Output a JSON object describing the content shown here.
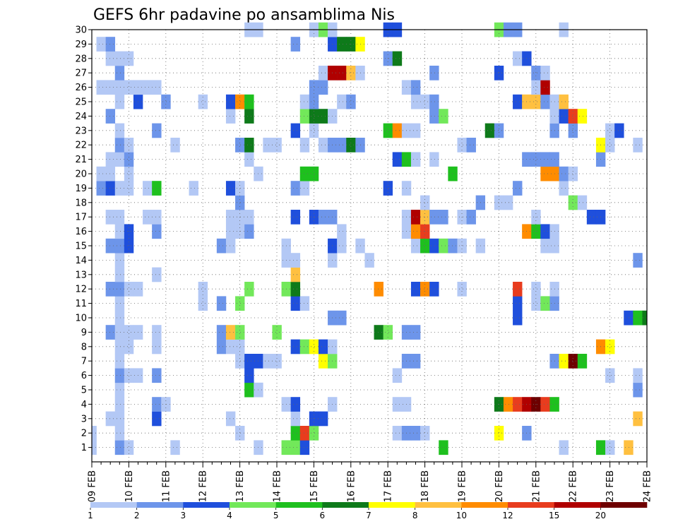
{
  "chart_data": {
    "type": "heatmap",
    "title": "GEFS 6hr padavine po ansamblima Nis",
    "xlabel": "",
    "ylabel": "",
    "x_range_steps": [
      0,
      60
    ],
    "steps_per_day": 4,
    "x_ticks": [
      "09 FEB",
      "10 FEB",
      "11 FEB",
      "12 FEB",
      "13 FEB",
      "14 FEB",
      "15 FEB",
      "16 FEB",
      "17 FEB",
      "18 FEB",
      "19 FEB",
      "20 FEB",
      "21 FEB",
      "22 FEB",
      "23 FEB",
      "24 FEB"
    ],
    "y_ticks": [
      1,
      2,
      3,
      4,
      5,
      6,
      7,
      8,
      9,
      10,
      11,
      12,
      13,
      14,
      15,
      16,
      17,
      18,
      19,
      20,
      21,
      22,
      23,
      24,
      25,
      26,
      27,
      28,
      29,
      30
    ],
    "ylim": [
      0,
      30
    ],
    "grid": true,
    "colorbar": {
      "labels": [
        "1",
        "2",
        "3",
        "4",
        "5",
        "6",
        "7",
        "8",
        "10",
        "12",
        "15",
        "20"
      ],
      "colors": [
        "#b3c8f5",
        "#6d95ea",
        "#1f4fdc",
        "#72e85a",
        "#1ec01e",
        "#0e7a1a",
        "#ffff00",
        "#ffc040",
        "#ff8c00",
        "#e83c1e",
        "#b00000",
        "#6e0000"
      ]
    },
    "levels_note": "each cell value = color bin index (1 = 1-2 mm ... 12 = >20 mm); x = 6-hour step from 09 FEB 00z, y = ensemble member",
    "cells": [
      [
        1,
        0,
        1
      ],
      [
        1,
        3,
        2
      ],
      [
        1,
        4,
        1
      ],
      [
        1,
        9,
        1
      ],
      [
        1,
        18,
        1
      ],
      [
        1,
        21,
        4
      ],
      [
        1,
        22,
        4
      ],
      [
        1,
        23,
        3
      ],
      [
        1,
        38,
        5
      ],
      [
        1,
        51,
        1
      ],
      [
        1,
        55,
        5
      ],
      [
        1,
        56,
        1
      ],
      [
        1,
        58,
        8
      ],
      [
        2,
        0,
        1
      ],
      [
        2,
        3,
        1
      ],
      [
        2,
        16,
        1
      ],
      [
        2,
        22,
        5
      ],
      [
        2,
        23,
        10
      ],
      [
        2,
        24,
        4
      ],
      [
        2,
        33,
        1
      ],
      [
        2,
        34,
        2
      ],
      [
        2,
        35,
        2
      ],
      [
        2,
        36,
        1
      ],
      [
        2,
        44,
        7
      ],
      [
        2,
        47,
        2
      ],
      [
        3,
        2,
        1
      ],
      [
        3,
        3,
        1
      ],
      [
        3,
        7,
        3
      ],
      [
        3,
        15,
        1
      ],
      [
        3,
        22,
        1
      ],
      [
        3,
        24,
        3
      ],
      [
        3,
        25,
        3
      ],
      [
        3,
        59,
        8
      ],
      [
        4,
        3,
        1
      ],
      [
        4,
        7,
        2
      ],
      [
        4,
        8,
        1
      ],
      [
        4,
        21,
        1
      ],
      [
        4,
        22,
        3
      ],
      [
        4,
        26,
        1
      ],
      [
        4,
        33,
        1
      ],
      [
        4,
        34,
        1
      ],
      [
        4,
        44,
        6
      ],
      [
        4,
        45,
        9
      ],
      [
        4,
        46,
        10
      ],
      [
        4,
        47,
        11
      ],
      [
        4,
        48,
        12
      ],
      [
        4,
        49,
        10
      ],
      [
        4,
        50,
        5
      ],
      [
        5,
        3,
        1
      ],
      [
        5,
        17,
        5
      ],
      [
        5,
        18,
        1
      ],
      [
        5,
        59,
        2
      ],
      [
        6,
        3,
        2
      ],
      [
        6,
        4,
        1
      ],
      [
        6,
        5,
        1
      ],
      [
        6,
        7,
        2
      ],
      [
        6,
        17,
        3
      ],
      [
        6,
        33,
        1
      ],
      [
        6,
        56,
        1
      ],
      [
        6,
        59,
        1
      ],
      [
        7,
        3,
        1
      ],
      [
        7,
        16,
        1
      ],
      [
        7,
        17,
        3
      ],
      [
        7,
        18,
        3
      ],
      [
        7,
        19,
        1
      ],
      [
        7,
        20,
        1
      ],
      [
        7,
        25,
        7
      ],
      [
        7,
        26,
        4
      ],
      [
        7,
        34,
        2
      ],
      [
        7,
        35,
        2
      ],
      [
        7,
        50,
        2
      ],
      [
        7,
        51,
        7
      ],
      [
        7,
        52,
        12
      ],
      [
        7,
        53,
        5
      ],
      [
        8,
        3,
        1
      ],
      [
        8,
        4,
        1
      ],
      [
        8,
        7,
        1
      ],
      [
        8,
        14,
        2
      ],
      [
        8,
        15,
        1
      ],
      [
        8,
        16,
        1
      ],
      [
        8,
        22,
        3
      ],
      [
        8,
        23,
        4
      ],
      [
        8,
        24,
        7
      ],
      [
        8,
        25,
        3
      ],
      [
        8,
        26,
        1
      ],
      [
        8,
        55,
        9
      ],
      [
        8,
        56,
        7
      ],
      [
        9,
        2,
        2
      ],
      [
        9,
        3,
        1
      ],
      [
        9,
        4,
        1
      ],
      [
        9,
        5,
        1
      ],
      [
        9,
        7,
        1
      ],
      [
        9,
        14,
        2
      ],
      [
        9,
        15,
        8
      ],
      [
        9,
        16,
        4
      ],
      [
        9,
        20,
        4
      ],
      [
        9,
        31,
        6
      ],
      [
        9,
        32,
        4
      ],
      [
        9,
        34,
        2
      ],
      [
        9,
        35,
        2
      ],
      [
        10,
        3,
        1
      ],
      [
        10,
        26,
        2
      ],
      [
        10,
        27,
        2
      ],
      [
        10,
        46,
        3
      ],
      [
        10,
        58,
        3
      ],
      [
        10,
        59,
        5
      ],
      [
        10,
        60,
        6
      ],
      [
        11,
        3,
        1
      ],
      [
        11,
        12,
        1
      ],
      [
        11,
        14,
        2
      ],
      [
        11,
        16,
        4
      ],
      [
        11,
        22,
        3
      ],
      [
        11,
        23,
        1
      ],
      [
        11,
        46,
        3
      ],
      [
        11,
        48,
        1
      ],
      [
        11,
        49,
        4
      ],
      [
        11,
        50,
        2
      ],
      [
        12,
        2,
        2
      ],
      [
        12,
        3,
        2
      ],
      [
        12,
        4,
        1
      ],
      [
        12,
        5,
        1
      ],
      [
        12,
        12,
        1
      ],
      [
        12,
        17,
        4
      ],
      [
        12,
        21,
        4
      ],
      [
        12,
        22,
        6
      ],
      [
        12,
        31,
        9
      ],
      [
        12,
        35,
        3
      ],
      [
        12,
        36,
        9
      ],
      [
        12,
        37,
        3
      ],
      [
        12,
        40,
        1
      ],
      [
        12,
        46,
        10
      ],
      [
        12,
        48,
        1
      ],
      [
        12,
        50,
        1
      ],
      [
        13,
        3,
        1
      ],
      [
        13,
        7,
        1
      ],
      [
        13,
        22,
        8
      ],
      [
        14,
        3,
        1
      ],
      [
        14,
        21,
        1
      ],
      [
        14,
        22,
        1
      ],
      [
        14,
        26,
        1
      ],
      [
        14,
        30,
        1
      ],
      [
        14,
        59,
        2
      ],
      [
        15,
        2,
        2
      ],
      [
        15,
        3,
        2
      ],
      [
        15,
        4,
        3
      ],
      [
        15,
        14,
        2
      ],
      [
        15,
        15,
        1
      ],
      [
        15,
        21,
        1
      ],
      [
        15,
        26,
        3
      ],
      [
        15,
        27,
        1
      ],
      [
        15,
        29,
        1
      ],
      [
        15,
        35,
        1
      ],
      [
        15,
        36,
        5
      ],
      [
        15,
        37,
        3
      ],
      [
        15,
        38,
        4
      ],
      [
        15,
        39,
        2
      ],
      [
        15,
        40,
        1
      ],
      [
        15,
        42,
        1
      ],
      [
        15,
        49,
        1
      ],
      [
        15,
        50,
        1
      ],
      [
        16,
        3,
        1
      ],
      [
        16,
        4,
        3
      ],
      [
        16,
        7,
        2
      ],
      [
        16,
        15,
        1
      ],
      [
        16,
        16,
        1
      ],
      [
        16,
        17,
        2
      ],
      [
        16,
        27,
        1
      ],
      [
        16,
        34,
        1
      ],
      [
        16,
        35,
        9
      ],
      [
        16,
        36,
        10
      ],
      [
        16,
        47,
        9
      ],
      [
        16,
        48,
        5
      ],
      [
        16,
        49,
        3
      ],
      [
        16,
        50,
        1
      ],
      [
        17,
        2,
        1
      ],
      [
        17,
        3,
        1
      ],
      [
        17,
        6,
        1
      ],
      [
        17,
        7,
        1
      ],
      [
        17,
        15,
        1
      ],
      [
        17,
        16,
        1
      ],
      [
        17,
        17,
        1
      ],
      [
        17,
        22,
        3
      ],
      [
        17,
        24,
        3
      ],
      [
        17,
        25,
        2
      ],
      [
        17,
        26,
        2
      ],
      [
        17,
        34,
        1
      ],
      [
        17,
        35,
        11
      ],
      [
        17,
        36,
        8
      ],
      [
        17,
        37,
        2
      ],
      [
        17,
        38,
        2
      ],
      [
        17,
        40,
        1
      ],
      [
        17,
        41,
        2
      ],
      [
        17,
        48,
        1
      ],
      [
        17,
        54,
        3
      ],
      [
        17,
        55,
        3
      ],
      [
        18,
        16,
        2
      ],
      [
        18,
        36,
        1
      ],
      [
        18,
        42,
        2
      ],
      [
        18,
        44,
        1
      ],
      [
        18,
        45,
        1
      ],
      [
        18,
        52,
        4
      ],
      [
        18,
        53,
        1
      ],
      [
        19,
        1,
        2
      ],
      [
        19,
        2,
        3
      ],
      [
        19,
        3,
        1
      ],
      [
        19,
        4,
        1
      ],
      [
        19,
        6,
        1
      ],
      [
        19,
        7,
        5
      ],
      [
        19,
        11,
        1
      ],
      [
        19,
        15,
        3
      ],
      [
        19,
        16,
        1
      ],
      [
        19,
        22,
        2
      ],
      [
        19,
        23,
        1
      ],
      [
        19,
        32,
        3
      ],
      [
        19,
        34,
        1
      ],
      [
        19,
        46,
        2
      ],
      [
        19,
        51,
        1
      ],
      [
        20,
        1,
        1
      ],
      [
        20,
        2,
        1
      ],
      [
        20,
        4,
        1
      ],
      [
        20,
        18,
        1
      ],
      [
        20,
        23,
        5
      ],
      [
        20,
        24,
        5
      ],
      [
        20,
        39,
        5
      ],
      [
        20,
        49,
        9
      ],
      [
        20,
        50,
        9
      ],
      [
        20,
        51,
        2
      ],
      [
        20,
        52,
        1
      ],
      [
        21,
        2,
        1
      ],
      [
        21,
        3,
        1
      ],
      [
        21,
        4,
        2
      ],
      [
        21,
        17,
        1
      ],
      [
        21,
        33,
        3
      ],
      [
        21,
        34,
        5
      ],
      [
        21,
        35,
        1
      ],
      [
        21,
        37,
        1
      ],
      [
        21,
        47,
        2
      ],
      [
        21,
        48,
        2
      ],
      [
        21,
        49,
        2
      ],
      [
        21,
        50,
        2
      ],
      [
        21,
        55,
        2
      ],
      [
        22,
        3,
        2
      ],
      [
        22,
        4,
        1
      ],
      [
        22,
        9,
        1
      ],
      [
        22,
        16,
        2
      ],
      [
        22,
        17,
        6
      ],
      [
        22,
        19,
        1
      ],
      [
        22,
        20,
        1
      ],
      [
        22,
        23,
        1
      ],
      [
        22,
        25,
        1
      ],
      [
        22,
        26,
        2
      ],
      [
        22,
        27,
        2
      ],
      [
        22,
        28,
        6
      ],
      [
        22,
        29,
        2
      ],
      [
        22,
        40,
        1
      ],
      [
        22,
        41,
        2
      ],
      [
        22,
        55,
        7
      ],
      [
        22,
        56,
        1
      ],
      [
        22,
        59,
        1
      ],
      [
        23,
        3,
        1
      ],
      [
        23,
        7,
        2
      ],
      [
        23,
        22,
        3
      ],
      [
        23,
        24,
        1
      ],
      [
        23,
        32,
        5
      ],
      [
        23,
        33,
        9
      ],
      [
        23,
        34,
        1
      ],
      [
        23,
        35,
        1
      ],
      [
        23,
        43,
        6
      ],
      [
        23,
        44,
        2
      ],
      [
        23,
        50,
        2
      ],
      [
        23,
        52,
        2
      ],
      [
        23,
        56,
        1
      ],
      [
        23,
        57,
        3
      ],
      [
        24,
        2,
        2
      ],
      [
        24,
        15,
        1
      ],
      [
        24,
        17,
        6
      ],
      [
        24,
        23,
        4
      ],
      [
        24,
        24,
        6
      ],
      [
        24,
        25,
        6
      ],
      [
        24,
        26,
        1
      ],
      [
        24,
        37,
        2
      ],
      [
        24,
        38,
        4
      ],
      [
        24,
        50,
        1
      ],
      [
        24,
        51,
        3
      ],
      [
        24,
        52,
        10
      ],
      [
        24,
        53,
        7
      ],
      [
        25,
        3,
        1
      ],
      [
        25,
        5,
        3
      ],
      [
        25,
        8,
        2
      ],
      [
        25,
        12,
        1
      ],
      [
        25,
        15,
        3
      ],
      [
        25,
        16,
        9
      ],
      [
        25,
        17,
        5
      ],
      [
        25,
        23,
        1
      ],
      [
        25,
        24,
        2
      ],
      [
        25,
        27,
        1
      ],
      [
        25,
        28,
        2
      ],
      [
        25,
        35,
        1
      ],
      [
        25,
        36,
        1
      ],
      [
        25,
        37,
        2
      ],
      [
        25,
        46,
        3
      ],
      [
        25,
        47,
        8
      ],
      [
        25,
        48,
        8
      ],
      [
        25,
        49,
        2
      ],
      [
        25,
        50,
        1
      ],
      [
        25,
        51,
        8
      ],
      [
        26,
        1,
        1
      ],
      [
        26,
        2,
        1
      ],
      [
        26,
        3,
        1
      ],
      [
        26,
        4,
        1
      ],
      [
        26,
        5,
        1
      ],
      [
        26,
        6,
        1
      ],
      [
        26,
        7,
        1
      ],
      [
        26,
        24,
        2
      ],
      [
        26,
        25,
        2
      ],
      [
        26,
        34,
        1
      ],
      [
        26,
        35,
        2
      ],
      [
        26,
        48,
        1
      ],
      [
        26,
        49,
        11
      ],
      [
        27,
        3,
        2
      ],
      [
        27,
        25,
        1
      ],
      [
        27,
        26,
        11
      ],
      [
        27,
        27,
        11
      ],
      [
        27,
        28,
        8
      ],
      [
        27,
        29,
        1
      ],
      [
        27,
        37,
        2
      ],
      [
        27,
        44,
        3
      ],
      [
        27,
        48,
        2
      ],
      [
        27,
        49,
        1
      ],
      [
        28,
        2,
        1
      ],
      [
        28,
        3,
        1
      ],
      [
        28,
        4,
        1
      ],
      [
        28,
        32,
        2
      ],
      [
        28,
        33,
        6
      ],
      [
        28,
        46,
        1
      ],
      [
        28,
        47,
        3
      ],
      [
        29,
        1,
        1
      ],
      [
        29,
        2,
        2
      ],
      [
        29,
        22,
        2
      ],
      [
        29,
        26,
        3
      ],
      [
        29,
        27,
        6
      ],
      [
        29,
        28,
        6
      ],
      [
        29,
        29,
        7
      ],
      [
        30,
        17,
        1
      ],
      [
        30,
        18,
        1
      ],
      [
        30,
        24,
        1
      ],
      [
        30,
        25,
        4
      ],
      [
        30,
        26,
        1
      ],
      [
        30,
        32,
        3
      ],
      [
        30,
        33,
        3
      ],
      [
        30,
        44,
        4
      ],
      [
        30,
        45,
        2
      ],
      [
        30,
        46,
        2
      ],
      [
        30,
        51,
        1
      ]
    ]
  }
}
